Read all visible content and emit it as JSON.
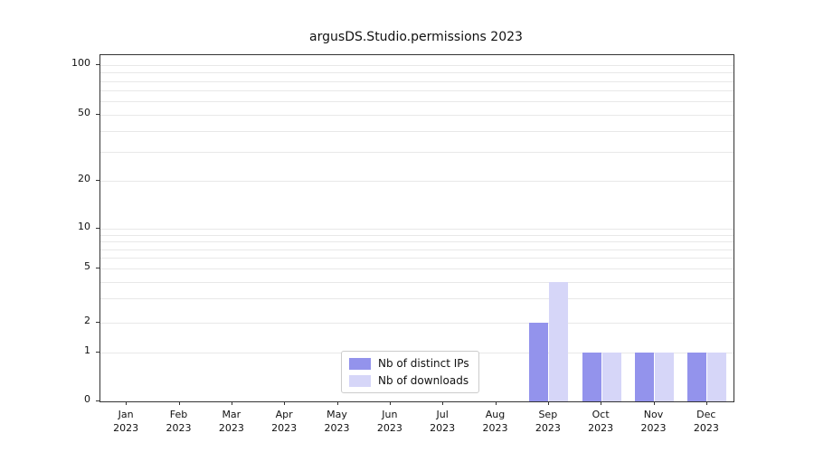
{
  "chart_data": {
    "type": "bar",
    "title": "argusDS.Studio.permissions 2023",
    "categories": [
      {
        "month": "Jan",
        "year": "2023"
      },
      {
        "month": "Feb",
        "year": "2023"
      },
      {
        "month": "Mar",
        "year": "2023"
      },
      {
        "month": "Apr",
        "year": "2023"
      },
      {
        "month": "May",
        "year": "2023"
      },
      {
        "month": "Jun",
        "year": "2023"
      },
      {
        "month": "Jul",
        "year": "2023"
      },
      {
        "month": "Aug",
        "year": "2023"
      },
      {
        "month": "Sep",
        "year": "2023"
      },
      {
        "month": "Oct",
        "year": "2023"
      },
      {
        "month": "Nov",
        "year": "2023"
      },
      {
        "month": "Dec",
        "year": "2023"
      }
    ],
    "series": [
      {
        "name": "Nb of distinct IPs",
        "color": "#9393ec",
        "values": [
          0,
          0,
          0,
          0,
          0,
          0,
          0,
          0,
          2,
          1,
          1,
          1
        ]
      },
      {
        "name": "Nb of downloads",
        "color": "#d6d6f8",
        "values": [
          0,
          0,
          0,
          0,
          0,
          0,
          0,
          0,
          4,
          1,
          1,
          1
        ]
      }
    ],
    "yaxis": {
      "scale": "symlog",
      "ticks": [
        0,
        1,
        2,
        5,
        10,
        20,
        50,
        100
      ],
      "minor_gridlines": [
        1,
        2,
        3,
        4,
        5,
        6,
        7,
        8,
        9,
        10,
        20,
        30,
        40,
        50,
        60,
        70,
        80,
        90,
        100
      ],
      "range": [
        0,
        110
      ]
    },
    "xlabel": "",
    "ylabel": "",
    "grid": "horizontal-only",
    "legend": {
      "position": "lower-center"
    }
  }
}
